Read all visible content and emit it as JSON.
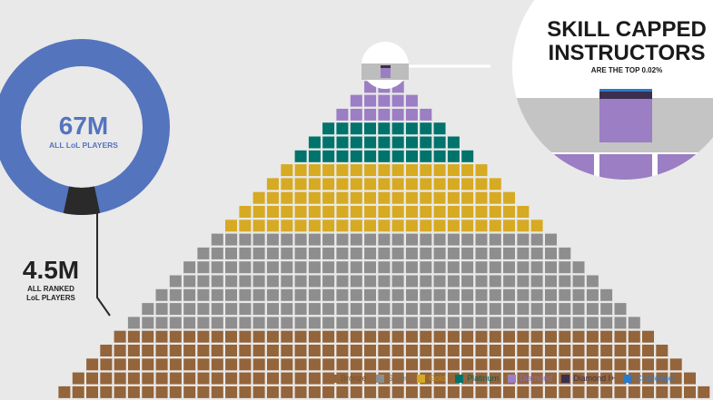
{
  "ring": {
    "big_number": "67M",
    "caption": "ALL LoL PLAYERS",
    "ring_color": "#5474be",
    "slice_color": "#2a2a2a"
  },
  "ranked": {
    "big_number": "4.5M",
    "caption_line1": "ALL RANKED",
    "caption_line2": "LoL PLAYERS"
  },
  "instructors": {
    "title_line1": "SKILL CAPPED",
    "title_line2": "INSTRUCTORS",
    "subtitle": "ARE THE TOP 0.02%"
  },
  "legend": [
    {
      "label": "Bronze",
      "color": "#94643a",
      "text_color": "#7a5230"
    },
    {
      "label": "Silver",
      "color": "#8e8e8e",
      "text_color": "#6f6f6f"
    },
    {
      "label": "Gold",
      "color": "#d6aa22",
      "text_color": "#c09118"
    },
    {
      "label": "Platinum",
      "color": "#00736c",
      "text_color": "#005f59"
    },
    {
      "label": "Diamond",
      "color": "#9b7ec3",
      "text_color": "#8a6db3"
    },
    {
      "label": "Diamond I+",
      "color": "#3c2f4d",
      "text_color": "#3c2f4d"
    },
    {
      "label": "Challenger",
      "color": "#2b7bc8",
      "text_color": "#2b7bc8"
    }
  ],
  "pyramid_tiers": [
    "Diamond I+",
    "Diamond",
    "Diamond",
    "Diamond",
    "Platinum",
    "Platinum",
    "Platinum",
    "Gold",
    "Gold",
    "Gold",
    "Gold",
    "Gold",
    "Silver",
    "Silver",
    "Silver",
    "Silver",
    "Silver",
    "Silver",
    "Silver",
    "Bronze",
    "Bronze",
    "Bronze",
    "Bronze",
    "Bronze"
  ]
}
